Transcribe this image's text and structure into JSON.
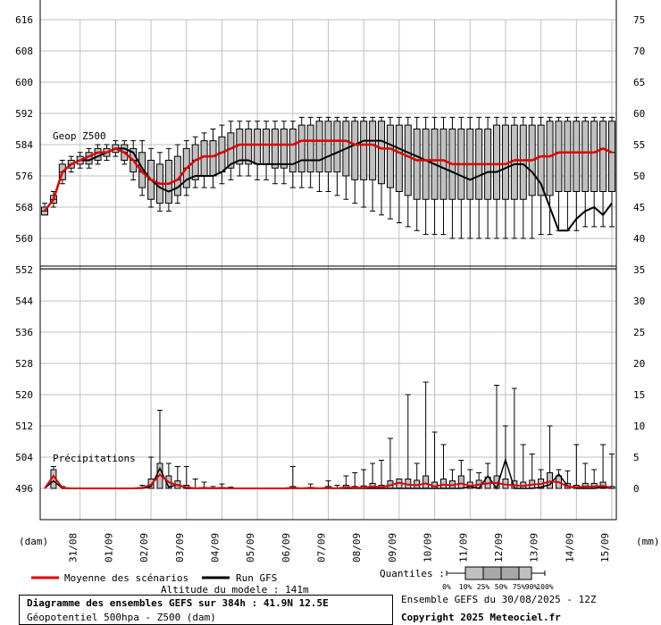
{
  "chart_data": {
    "type": "line",
    "title": "Diagramme des ensembles GEFS sur 384h : 41.9N 12.5E",
    "subtitle": "Géopotentiel 500hpa - Z500 (dam)",
    "panels": [
      {
        "label": "Geop Z500",
        "left_axis_label": "(dam)",
        "left_ticks": [
          616,
          608,
          600,
          592,
          584,
          576,
          568,
          560,
          552
        ],
        "right_ticks": [
          75,
          70,
          65,
          60,
          55,
          50,
          45,
          40,
          35
        ]
      },
      {
        "label": "Précipitations",
        "right_axis_label": "(mm)",
        "left_ticks": [
          552,
          544,
          536,
          528,
          520,
          512,
          504,
          496
        ],
        "right_ticks": [
          35,
          30,
          25,
          20,
          15,
          10,
          5,
          0
        ]
      }
    ],
    "x_tick_labels": [
      "31/08",
      "01/09",
      "02/09",
      "03/09",
      "04/09",
      "05/09",
      "06/09",
      "07/09",
      "08/09",
      "09/09",
      "10/09",
      "11/09",
      "12/09",
      "13/09",
      "14/09",
      "15/09"
    ],
    "z500": {
      "hours": [
        0,
        6,
        12,
        18,
        24,
        30,
        36,
        42,
        48,
        54,
        60,
        66,
        72,
        78,
        84,
        90,
        96,
        102,
        108,
        114,
        120,
        126,
        132,
        138,
        144,
        150,
        156,
        162,
        168,
        174,
        180,
        186,
        192,
        198,
        204,
        210,
        216,
        222,
        228,
        234,
        240,
        246,
        252,
        258,
        264,
        270,
        276,
        282,
        288,
        294,
        300,
        306,
        312,
        318,
        324,
        330,
        336,
        342,
        348,
        354,
        360,
        366,
        372,
        378,
        384
      ],
      "run_gfs": [
        567,
        570,
        577,
        579,
        580,
        580,
        581,
        582,
        583,
        583,
        582,
        578,
        575,
        573,
        572,
        573,
        575,
        576,
        576,
        576,
        577,
        579,
        580,
        580,
        579,
        579,
        579,
        579,
        579,
        580,
        580,
        580,
        581,
        582,
        583,
        584,
        585,
        585,
        585,
        584,
        583,
        582,
        581,
        580,
        579,
        578,
        577,
        576,
        575,
        576,
        577,
        577,
        578,
        579,
        579,
        577,
        574,
        568,
        562,
        562,
        565,
        567,
        568,
        566,
        569
      ],
      "ensemble_mean": [
        567,
        570,
        577,
        579,
        580,
        581,
        582,
        582,
        583,
        582,
        580,
        577,
        575,
        574,
        574,
        575,
        578,
        580,
        581,
        581,
        582,
        583,
        584,
        584,
        584,
        584,
        584,
        584,
        584,
        585,
        585,
        585,
        585,
        585,
        585,
        584,
        584,
        584,
        583,
        583,
        582,
        581,
        580,
        580,
        580,
        580,
        579,
        579,
        579,
        579,
        579,
        579,
        579,
        580,
        580,
        580,
        581,
        581,
        582,
        582,
        582,
        582,
        582,
        583,
        582
      ],
      "q10": [
        566,
        569,
        575,
        578,
        579,
        579,
        580,
        581,
        582,
        580,
        577,
        573,
        570,
        569,
        569,
        571,
        573,
        575,
        576,
        576,
        577,
        578,
        579,
        579,
        579,
        579,
        578,
        578,
        577,
        577,
        577,
        577,
        577,
        577,
        576,
        575,
        575,
        575,
        574,
        573,
        572,
        571,
        570,
        570,
        570,
        570,
        570,
        570,
        570,
        570,
        570,
        570,
        570,
        570,
        570,
        571,
        571,
        571,
        572,
        572,
        572,
        572,
        572,
        572,
        572
      ],
      "q90": [
        568,
        571,
        579,
        580,
        581,
        582,
        583,
        583,
        584,
        584,
        583,
        582,
        580,
        579,
        580,
        581,
        583,
        584,
        585,
        585,
        586,
        587,
        588,
        588,
        588,
        588,
        588,
        588,
        588,
        589,
        589,
        590,
        590,
        590,
        590,
        590,
        590,
        590,
        590,
        589,
        589,
        589,
        588,
        588,
        588,
        588,
        588,
        588,
        588,
        588,
        588,
        589,
        589,
        589,
        589,
        589,
        589,
        590,
        590,
        590,
        590,
        590,
        590,
        590,
        590
      ],
      "min": [
        566,
        568,
        574,
        577,
        578,
        578,
        579,
        580,
        581,
        579,
        575,
        571,
        568,
        567,
        567,
        569,
        571,
        573,
        573,
        573,
        574,
        575,
        576,
        576,
        575,
        575,
        574,
        574,
        573,
        573,
        573,
        572,
        572,
        571,
        570,
        569,
        568,
        567,
        566,
        565,
        564,
        563,
        562,
        561,
        561,
        561,
        560,
        560,
        560,
        560,
        560,
        560,
        560,
        560,
        560,
        560,
        561,
        561,
        562,
        562,
        562,
        563,
        563,
        563,
        563
      ],
      "max": [
        569,
        572,
        580,
        581,
        582,
        583,
        584,
        584,
        585,
        585,
        585,
        585,
        583,
        582,
        583,
        584,
        585,
        586,
        587,
        588,
        589,
        590,
        590,
        590,
        590,
        590,
        590,
        590,
        590,
        591,
        591,
        591,
        591,
        591,
        591,
        591,
        591,
        591,
        591,
        591,
        591,
        591,
        591,
        591,
        591,
        591,
        591,
        591,
        591,
        591,
        591,
        591,
        591,
        591,
        591,
        591,
        591,
        591,
        591,
        591,
        591,
        591,
        591,
        591,
        591
      ]
    },
    "precip": {
      "hours": [
        0,
        6,
        12,
        18,
        24,
        30,
        36,
        42,
        48,
        54,
        60,
        66,
        72,
        78,
        84,
        90,
        96,
        102,
        108,
        114,
        120,
        126,
        132,
        138,
        144,
        150,
        156,
        162,
        168,
        174,
        180,
        186,
        192,
        198,
        204,
        210,
        216,
        222,
        228,
        234,
        240,
        246,
        252,
        258,
        264,
        270,
        276,
        282,
        288,
        294,
        300,
        306,
        312,
        318,
        324,
        330,
        336,
        342,
        348,
        354,
        360,
        366,
        372,
        378,
        384
      ],
      "run_gfs_mm": [
        0,
        1.2,
        0,
        0,
        0,
        0,
        0,
        0,
        0,
        0,
        0,
        0,
        0.3,
        3.2,
        0.2,
        0.6,
        0,
        0,
        0,
        0,
        0,
        0,
        0,
        0,
        0,
        0,
        0,
        0,
        0,
        0,
        0,
        0,
        0,
        0,
        0,
        0,
        0,
        0,
        0,
        0,
        0,
        0,
        0,
        0,
        0,
        0,
        0,
        0,
        0.3,
        0,
        2.0,
        0,
        4.6,
        0,
        0,
        0,
        0.2,
        0.6,
        2.3,
        0.4,
        0,
        0,
        0,
        0.2,
        0
      ],
      "mean_mm": [
        0,
        2.0,
        0.1,
        0,
        0,
        0,
        0,
        0,
        0,
        0,
        0,
        0.1,
        0.6,
        2.2,
        1.0,
        0.5,
        0.2,
        0,
        0.1,
        0,
        0.1,
        0,
        0,
        0,
        0,
        0,
        0,
        0,
        0.1,
        0,
        0.1,
        0,
        0.1,
        0,
        0.2,
        0.1,
        0.1,
        0.3,
        0.2,
        0.5,
        0.9,
        0.6,
        0.5,
        0.8,
        0.3,
        0.6,
        0.5,
        0.8,
        0.4,
        0.6,
        0.8,
        0.9,
        0.6,
        0.5,
        0.4,
        0.6,
        0.7,
        1.1,
        1.0,
        0.3,
        0.2,
        0.3,
        0.3,
        0.4,
        0.1
      ],
      "q90_mm": [
        0,
        3.0,
        0.2,
        0,
        0,
        0,
        0,
        0,
        0,
        0,
        0,
        0.2,
        1.5,
        4.0,
        2.0,
        1.2,
        0.5,
        0.2,
        0.2,
        0.1,
        0.2,
        0.1,
        0,
        0,
        0,
        0,
        0,
        0,
        0.3,
        0,
        0.2,
        0,
        0.3,
        0.2,
        0.5,
        0.3,
        0.4,
        0.8,
        0.5,
        1.2,
        1.5,
        1.5,
        1.3,
        2.0,
        1.0,
        1.5,
        1.2,
        2.0,
        1.0,
        1.3,
        1.8,
        2.0,
        1.5,
        1.2,
        1.0,
        1.3,
        1.5,
        2.5,
        2.0,
        0.8,
        0.5,
        0.8,
        0.8,
        1.0,
        0.3
      ],
      "max_mm": [
        0,
        3.5,
        0.3,
        0,
        0,
        0,
        0,
        0,
        0,
        0,
        0,
        0.5,
        5.0,
        12.5,
        4.0,
        3.5,
        3.5,
        1.5,
        1.0,
        0.3,
        0.7,
        0.2,
        0,
        0,
        0,
        0,
        0,
        0,
        3.5,
        0,
        0.7,
        0,
        1.2,
        0.5,
        2.0,
        2.5,
        3.0,
        4.0,
        4.5,
        8.0,
        1.5,
        15.0,
        4.0,
        17.0,
        9.0,
        7.0,
        3.0,
        4.5,
        3.0,
        2.5,
        4.0,
        16.5,
        10.0,
        16.0,
        7.0,
        5.5,
        3.0,
        10.0,
        3.0,
        2.8,
        7.0,
        4.0,
        3.0,
        7.0,
        5.5
      ]
    }
  },
  "legend": {
    "mean_label": "Moyenne des scénarios",
    "run_label": "Run GFS",
    "altitude_label": "Altitude du modele : 141m",
    "quantiles_label": "Quantiles :",
    "quantile_ticks": [
      "0%",
      "10%",
      "25%",
      "50%",
      "75%",
      "90%",
      "100%"
    ]
  },
  "footer": {
    "title": "Diagramme des ensembles GEFS sur 384h : 41.9N 12.5E",
    "subtitle": "Géopotentiel 500hpa - Z500 (dam)",
    "ensemble_run": "Ensemble GEFS du 30/08/2025 - 12Z",
    "copyright": "Copyright 2025 Meteociel.fr"
  },
  "colors": {
    "mean": "#e00000",
    "run": "#000000",
    "box_fill": "#c0c0c0",
    "grid": "#c0c0c0"
  }
}
